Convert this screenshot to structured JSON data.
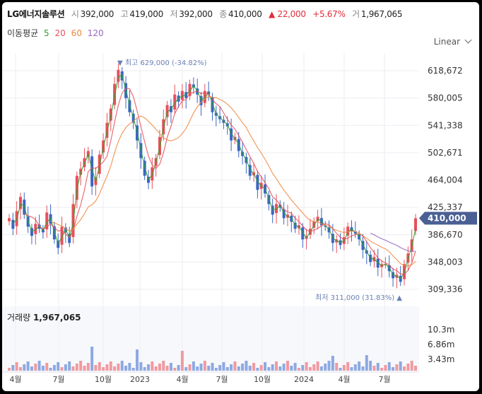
{
  "header": {
    "name": "LG에너지솔루션",
    "open_label": "시",
    "open": "392,000",
    "high_label": "고",
    "high": "419,000",
    "low_label": "저",
    "low": "392,000",
    "close_label": "종",
    "close": "410,000",
    "change": "▲ 22,000",
    "change_pct": "+5.67%",
    "volume_label": "거",
    "volume": "1,967,065"
  },
  "ma_legend": {
    "label": "이동평균",
    "periods": [
      {
        "text": "5",
        "color": "#2ca02c"
      },
      {
        "text": "20",
        "color": "#e8505b"
      },
      {
        "text": "60",
        "color": "#f0883e"
      },
      {
        "text": "120",
        "color": "#9467bd"
      }
    ]
  },
  "scale_label": "Linear",
  "colors": {
    "up": "#e8505b",
    "down": "#3a66c4",
    "price_tag": "#4a5f94",
    "annotation": "#6a7fb5"
  },
  "chart_data": {
    "type": "candlestick",
    "y_ticks": [
      "618,672",
      "580,005",
      "541,338",
      "502,671",
      "464,004",
      "425,337",
      "386,670",
      "348,003",
      "309,336"
    ],
    "x_ticks": [
      "4월",
      "7월",
      "10월",
      "2023",
      "4월",
      "7월",
      "10월",
      "2024",
      "4월",
      "7월"
    ],
    "current_price": "410,000",
    "high_annotation": "▼ 최고 629,000 (-34.82%)",
    "low_annotation": "최저 311,000 (31.83%) ▲",
    "high_value": 629000,
    "low_value": 311000,
    "ohlc_weekly_close": [
      410000,
      395000,
      420000,
      440000,
      415000,
      398000,
      385000,
      402000,
      395000,
      390000,
      418000,
      402000,
      380000,
      368000,
      398000,
      390000,
      375000,
      430000,
      470000,
      480000,
      495000,
      505000,
      455000,
      468000,
      500000,
      520000,
      545000,
      565000,
      600000,
      620000,
      605000,
      580000,
      560000,
      545000,
      520000,
      495000,
      470000,
      460000,
      482000,
      495000,
      525000,
      550000,
      570000,
      560000,
      585000,
      575000,
      590000,
      580000,
      600000,
      595000,
      585000,
      570000,
      590000,
      585000,
      560000,
      555000,
      550000,
      545000,
      540000,
      520000,
      525000,
      505000,
      498000,
      488000,
      470000,
      475000,
      450000,
      460000,
      445000,
      430000,
      415000,
      430000,
      425000,
      410000,
      415000,
      405000,
      395000,
      400000,
      380000,
      385000,
      395000,
      405000,
      412000,
      400000,
      398000,
      390000,
      375000,
      380000,
      372000,
      383000,
      398000,
      392000,
      388000,
      380000,
      365000,
      360000,
      348000,
      355000,
      340000,
      345000,
      345000,
      335000,
      325000,
      330000,
      320000,
      345000,
      360000,
      380000,
      410000
    ],
    "ma_series": [
      {
        "name": "5"
      },
      {
        "name": "20"
      },
      {
        "name": "60"
      },
      {
        "name": "120"
      }
    ],
    "volume": {
      "title": "거래량",
      "latest": "1,967,065",
      "y_ticks": [
        "10.3m",
        "6.86m",
        "3.43m"
      ]
    }
  }
}
